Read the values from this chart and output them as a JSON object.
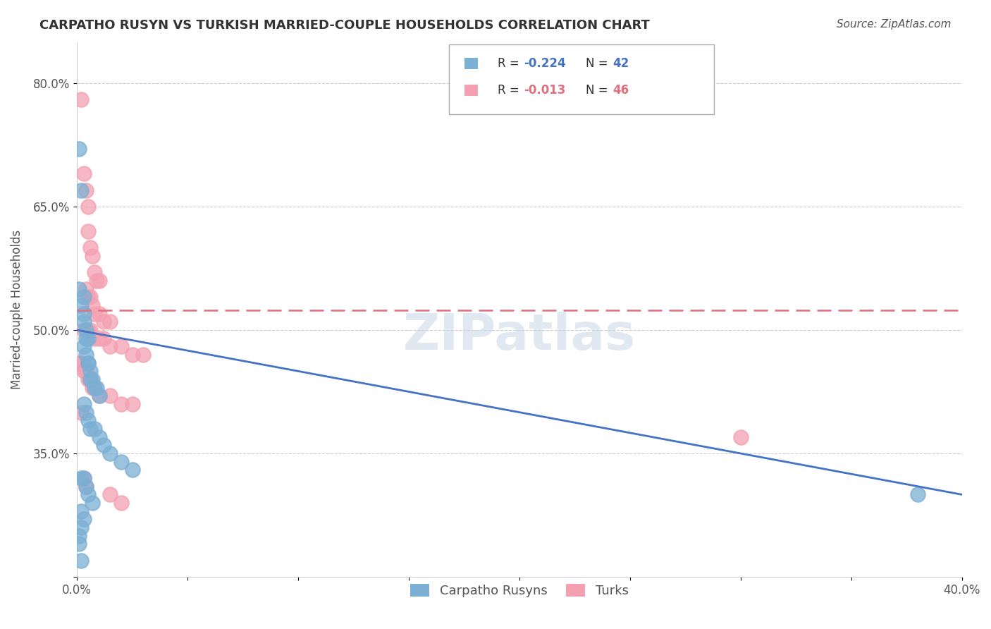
{
  "title": "CARPATHO RUSYN VS TURKISH MARRIED-COUPLE HOUSEHOLDS CORRELATION CHART",
  "source": "Source: ZipAtlas.com",
  "xlabel": "",
  "ylabel": "Married-couple Households",
  "xlim": [
    0.0,
    0.4
  ],
  "ylim": [
    0.2,
    0.85
  ],
  "xticks": [
    0.0,
    0.05,
    0.1,
    0.15,
    0.2,
    0.25,
    0.3,
    0.35,
    0.4
  ],
  "xticklabels": [
    "0.0%",
    "",
    "",
    "",
    "",
    "",
    "",
    "",
    "40.0%"
  ],
  "yticks": [
    0.2,
    0.35,
    0.5,
    0.65,
    0.8
  ],
  "yticklabels": [
    "",
    "35.0%",
    "50.0%",
    "65.0%",
    "80.0%"
  ],
  "grid_color": "#cccccc",
  "background_color": "#ffffff",
  "watermark": "ZIPatlas",
  "legend_r1": "R = -0.224",
  "legend_n1": "N = 42",
  "legend_r2": "R = -0.013",
  "legend_n2": "N = 46",
  "blue_color": "#7bafd4",
  "pink_color": "#f4a0b0",
  "blue_line_color": "#4472c4",
  "pink_line_color": "#e07080",
  "carpatho_x": [
    0.001,
    0.002,
    0.001,
    0.003,
    0.002,
    0.003,
    0.003,
    0.004,
    0.004,
    0.005,
    0.003,
    0.004,
    0.005,
    0.005,
    0.006,
    0.006,
    0.007,
    0.008,
    0.009,
    0.01,
    0.003,
    0.004,
    0.005,
    0.006,
    0.008,
    0.01,
    0.012,
    0.015,
    0.02,
    0.025,
    0.002,
    0.003,
    0.004,
    0.005,
    0.007,
    0.002,
    0.003,
    0.002,
    0.001,
    0.001,
    0.38,
    0.002
  ],
  "carpatho_y": [
    0.72,
    0.67,
    0.55,
    0.54,
    0.53,
    0.52,
    0.51,
    0.5,
    0.49,
    0.49,
    0.48,
    0.47,
    0.46,
    0.46,
    0.45,
    0.44,
    0.44,
    0.43,
    0.43,
    0.42,
    0.41,
    0.4,
    0.39,
    0.38,
    0.38,
    0.37,
    0.36,
    0.35,
    0.34,
    0.33,
    0.32,
    0.32,
    0.31,
    0.3,
    0.29,
    0.28,
    0.27,
    0.26,
    0.25,
    0.24,
    0.3,
    0.22
  ],
  "turkish_x": [
    0.002,
    0.003,
    0.004,
    0.005,
    0.005,
    0.006,
    0.007,
    0.008,
    0.009,
    0.01,
    0.004,
    0.005,
    0.006,
    0.007,
    0.008,
    0.01,
    0.012,
    0.015,
    0.003,
    0.005,
    0.006,
    0.008,
    0.01,
    0.012,
    0.015,
    0.02,
    0.025,
    0.03,
    0.001,
    0.002,
    0.003,
    0.004,
    0.005,
    0.006,
    0.007,
    0.008,
    0.01,
    0.015,
    0.02,
    0.025,
    0.3,
    0.002,
    0.003,
    0.004,
    0.015,
    0.02
  ],
  "turkish_y": [
    0.78,
    0.69,
    0.67,
    0.65,
    0.62,
    0.6,
    0.59,
    0.57,
    0.56,
    0.56,
    0.55,
    0.54,
    0.54,
    0.53,
    0.52,
    0.52,
    0.51,
    0.51,
    0.5,
    0.5,
    0.5,
    0.49,
    0.49,
    0.49,
    0.48,
    0.48,
    0.47,
    0.47,
    0.46,
    0.46,
    0.45,
    0.45,
    0.44,
    0.44,
    0.43,
    0.43,
    0.42,
    0.42,
    0.41,
    0.41,
    0.37,
    0.4,
    0.32,
    0.31,
    0.3,
    0.29
  ]
}
